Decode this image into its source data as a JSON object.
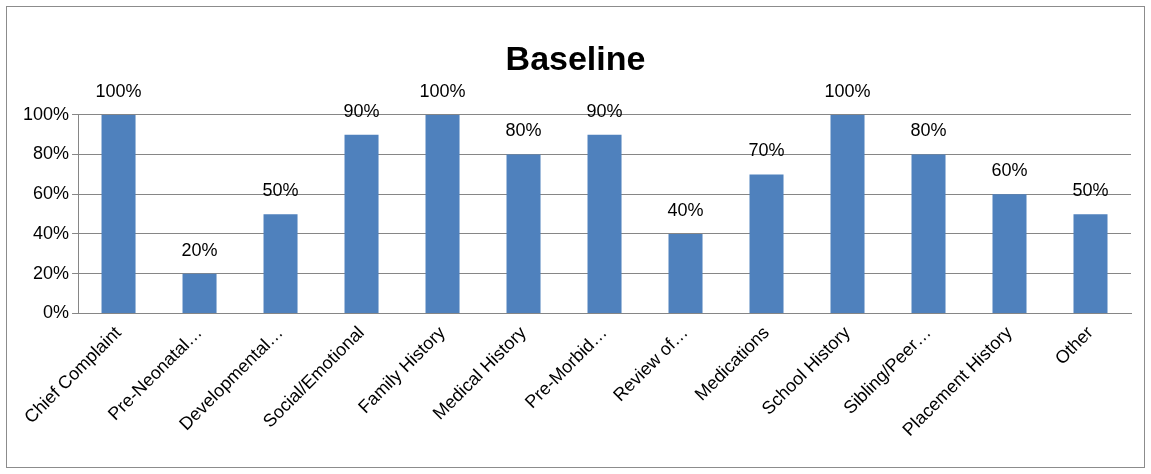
{
  "chart_data": {
    "type": "bar",
    "title": "Baseline",
    "categories": [
      "Chief Complaint",
      "Pre-Neonatal…",
      "Developmental…",
      "Social/Emotional",
      "Family History",
      "Medical History",
      "Pre-Morbid…",
      "Review of…",
      "Medications",
      "School History",
      "Sibling/Peer…",
      "Placement History",
      "Other"
    ],
    "values": [
      100,
      20,
      50,
      90,
      100,
      80,
      90,
      40,
      70,
      100,
      80,
      60,
      50
    ],
    "value_labels": [
      "100%",
      "20%",
      "50%",
      "90%",
      "100%",
      "80%",
      "90%",
      "40%",
      "70%",
      "100%",
      "80%",
      "60%",
      "50%"
    ],
    "color": "#4f81bd",
    "ylim": [
      0,
      100
    ],
    "yticks": [
      {
        "value": 0,
        "label": "0%"
      },
      {
        "value": 20,
        "label": "20%"
      },
      {
        "value": 40,
        "label": "40%"
      },
      {
        "value": 60,
        "label": "60%"
      },
      {
        "value": 80,
        "label": "80%"
      },
      {
        "value": 100,
        "label": "100%"
      }
    ],
    "grid": "y",
    "legend": false
  }
}
